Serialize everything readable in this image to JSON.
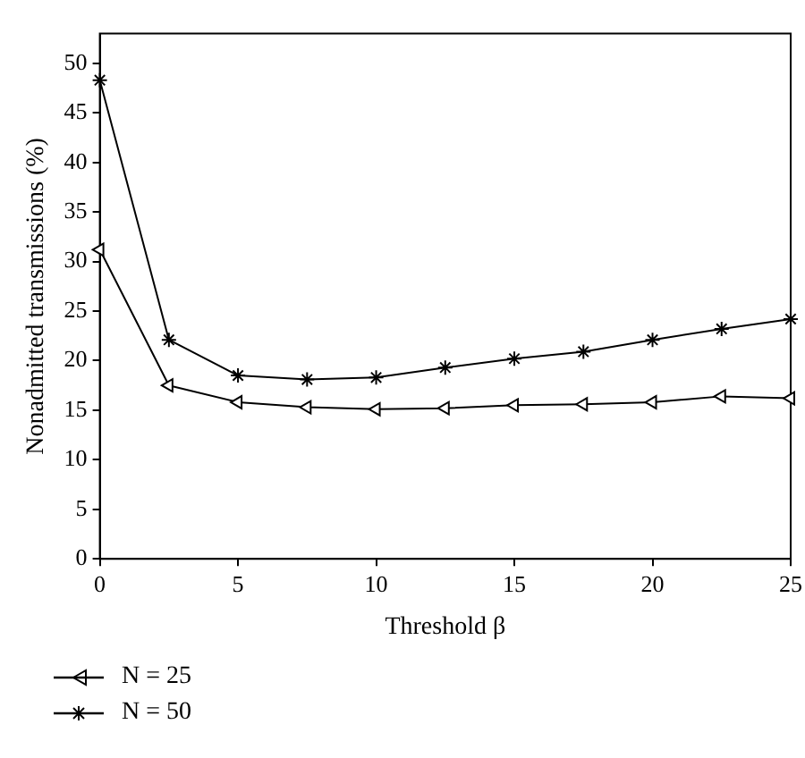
{
  "chart_data": {
    "type": "line",
    "xlabel": "Threshold β",
    "ylabel": "Nonadmitted transmissions (%)",
    "x": [
      0,
      2.5,
      5,
      7.5,
      10,
      12.5,
      15,
      17.5,
      20,
      22.5,
      25
    ],
    "series": [
      {
        "name": "N = 25",
        "color": "#000000",
        "marker": "triangle",
        "values": [
          31.2,
          17.5,
          15.8,
          15.3,
          15.1,
          15.2,
          15.5,
          15.6,
          15.8,
          16.4,
          16.2
        ]
      },
      {
        "name": "N = 50",
        "color": "#000000",
        "marker": "cross",
        "values": [
          48.3,
          22.1,
          18.5,
          18.1,
          18.3,
          19.3,
          20.2,
          20.9,
          22.1,
          23.2,
          24.2
        ]
      }
    ],
    "xlim": [
      0,
      25
    ],
    "xticks": [
      0,
      5,
      10,
      15,
      20,
      25
    ],
    "ylim": [
      0,
      53
    ],
    "yticks": [
      0,
      5,
      10,
      15,
      20,
      25,
      30,
      35,
      40,
      45,
      50
    ],
    "legend": "bottom left",
    "line_style": "solid"
  }
}
